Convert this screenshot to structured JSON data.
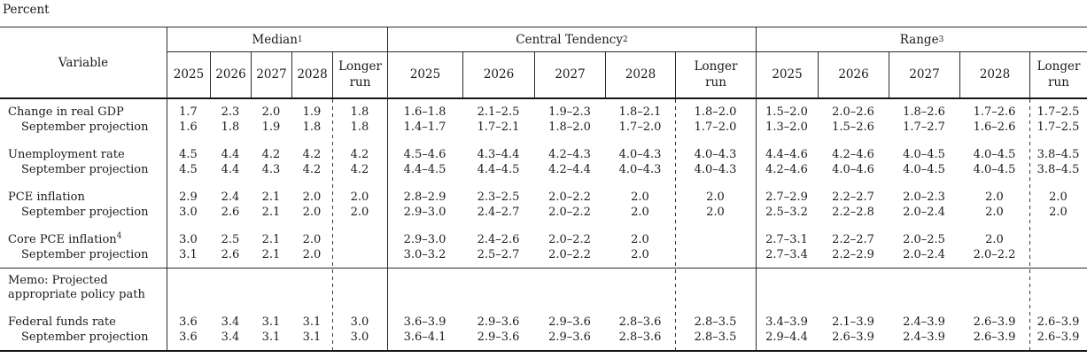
{
  "unit_label": "Percent",
  "table": {
    "variable_header": "Variable",
    "groups": [
      {
        "label": "Median",
        "footnote": "1"
      },
      {
        "label": "Central Tendency",
        "footnote": "2"
      },
      {
        "label": "Range",
        "footnote": "3"
      }
    ],
    "year_headers": [
      "2025",
      "2026",
      "2027",
      "2028",
      "Longer\nrun"
    ],
    "rows": [
      {
        "label": "Change in real GDP",
        "footnote": "",
        "indent": false,
        "gap_after": false,
        "median": [
          "1.7",
          "2.3",
          "2.0",
          "1.9",
          "1.8"
        ],
        "central_tendency": [
          "1.6–1.8",
          "2.1–2.5",
          "1.9–2.3",
          "1.8–2.1",
          "1.8–2.0"
        ],
        "range": [
          "1.5–2.0",
          "2.0–2.6",
          "1.8–2.6",
          "1.7–2.6",
          "1.7–2.5"
        ]
      },
      {
        "label": "September projection",
        "footnote": "",
        "indent": true,
        "gap_after": true,
        "median": [
          "1.6",
          "1.8",
          "1.9",
          "1.8",
          "1.8"
        ],
        "central_tendency": [
          "1.4–1.7",
          "1.7–2.1",
          "1.8–2.0",
          "1.7–2.0",
          "1.7–2.0"
        ],
        "range": [
          "1.3–2.0",
          "1.5–2.6",
          "1.7–2.7",
          "1.6–2.6",
          "1.7–2.5"
        ]
      },
      {
        "label": "Unemployment rate",
        "footnote": "",
        "indent": false,
        "gap_after": false,
        "median": [
          "4.5",
          "4.4",
          "4.2",
          "4.2",
          "4.2"
        ],
        "central_tendency": [
          "4.5–4.6",
          "4.3–4.4",
          "4.2–4.3",
          "4.0–4.3",
          "4.0–4.3"
        ],
        "range": [
          "4.4–4.6",
          "4.2–4.6",
          "4.0–4.5",
          "4.0–4.5",
          "3.8–4.5"
        ]
      },
      {
        "label": "September projection",
        "footnote": "",
        "indent": true,
        "gap_after": true,
        "median": [
          "4.5",
          "4.4",
          "4.3",
          "4.2",
          "4.2"
        ],
        "central_tendency": [
          "4.4–4.5",
          "4.4–4.5",
          "4.2–4.4",
          "4.0–4.3",
          "4.0–4.3"
        ],
        "range": [
          "4.2–4.6",
          "4.0–4.6",
          "4.0–4.5",
          "4.0–4.5",
          "3.8–4.5"
        ]
      },
      {
        "label": "PCE inflation",
        "footnote": "",
        "indent": false,
        "gap_after": false,
        "median": [
          "2.9",
          "2.4",
          "2.1",
          "2.0",
          "2.0"
        ],
        "central_tendency": [
          "2.8–2.9",
          "2.3–2.5",
          "2.0–2.2",
          "2.0",
          "2.0"
        ],
        "range": [
          "2.7–2.9",
          "2.2–2.7",
          "2.0–2.3",
          "2.0",
          "2.0"
        ]
      },
      {
        "label": "September projection",
        "footnote": "",
        "indent": true,
        "gap_after": true,
        "median": [
          "3.0",
          "2.6",
          "2.1",
          "2.0",
          "2.0"
        ],
        "central_tendency": [
          "2.9–3.0",
          "2.4–2.7",
          "2.0–2.2",
          "2.0",
          "2.0"
        ],
        "range": [
          "2.5–3.2",
          "2.2–2.8",
          "2.0–2.4",
          "2.0",
          "2.0"
        ]
      },
      {
        "label": "Core PCE inflation",
        "footnote": "4",
        "indent": false,
        "gap_after": false,
        "median": [
          "3.0",
          "2.5",
          "2.1",
          "2.0",
          ""
        ],
        "central_tendency": [
          "2.9–3.0",
          "2.4–2.6",
          "2.0–2.2",
          "2.0",
          ""
        ],
        "range": [
          "2.7–3.1",
          "2.2–2.7",
          "2.0–2.5",
          "2.0",
          ""
        ]
      },
      {
        "label": "September projection",
        "footnote": "",
        "indent": true,
        "gap_after": false,
        "median": [
          "3.1",
          "2.6",
          "2.1",
          "2.0",
          ""
        ],
        "central_tendency": [
          "3.0–3.2",
          "2.5–2.7",
          "2.0–2.2",
          "2.0",
          ""
        ],
        "range": [
          "2.7–3.4",
          "2.2–2.9",
          "2.0–2.4",
          "2.0–2.2",
          ""
        ]
      }
    ],
    "memo_rows": [
      {
        "label": "Memo: Projected appropriate policy path",
        "label_lines": [
          "Memo: Projected",
          "appropriate policy path"
        ],
        "footnote": "",
        "indent": false,
        "gap_after": true,
        "median": [
          "",
          "",
          "",
          "",
          ""
        ],
        "central_tendency": [
          "",
          "",
          "",
          "",
          ""
        ],
        "range": [
          "",
          "",
          "",
          "",
          ""
        ]
      },
      {
        "label": "Federal funds rate",
        "footnote": "",
        "indent": false,
        "gap_after": false,
        "median": [
          "3.6",
          "3.4",
          "3.1",
          "3.1",
          "3.0"
        ],
        "central_tendency": [
          "3.6–3.9",
          "2.9–3.6",
          "2.9–3.6",
          "2.8–3.6",
          "2.8–3.5"
        ],
        "range": [
          "3.4–3.9",
          "2.1–3.9",
          "2.4–3.9",
          "2.6–3.9",
          "2.6–3.9"
        ]
      },
      {
        "label": "September projection",
        "footnote": "",
        "indent": true,
        "gap_after": false,
        "median": [
          "3.6",
          "3.4",
          "3.1",
          "3.1",
          "3.0"
        ],
        "central_tendency": [
          "3.6–4.1",
          "2.9–3.6",
          "2.9–3.6",
          "2.8–3.6",
          "2.8–3.5"
        ],
        "range": [
          "2.9–4.4",
          "2.6–3.9",
          "2.4–3.9",
          "2.6–3.9",
          "2.6–3.9"
        ]
      }
    ]
  }
}
